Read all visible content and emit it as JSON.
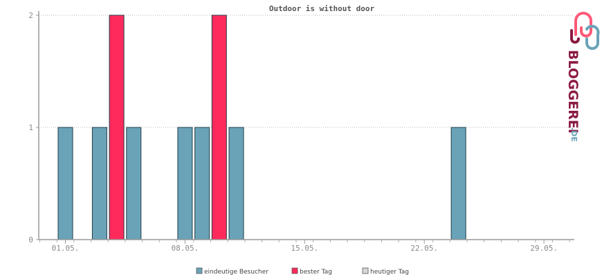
{
  "chart_data": {
    "type": "bar",
    "title": "Outdoor is without door",
    "xlabel": "",
    "ylabel": "",
    "ylim": [
      0,
      2
    ],
    "yticks": [
      0,
      1,
      2
    ],
    "x_range": [
      0,
      31
    ],
    "x_ticks": [
      {
        "day": 1,
        "label": "01.05."
      },
      {
        "day": 8,
        "label": "08.05."
      },
      {
        "day": 15,
        "label": "15.05."
      },
      {
        "day": 22,
        "label": "22.05."
      },
      {
        "day": 29,
        "label": "29.05."
      }
    ],
    "grid": true,
    "legend_position": "bottom",
    "series": [
      {
        "name": "eindeutige Besucher",
        "color": "#6aa3b8",
        "type": "bar"
      },
      {
        "name": "bester Tag",
        "color": "#ff2a5c",
        "type": "bar"
      },
      {
        "name": "heutiger Tag",
        "color": "#d6d6d6",
        "type": "bar"
      }
    ],
    "bars": [
      {
        "day": 1,
        "value": 1,
        "series": "eindeutige Besucher"
      },
      {
        "day": 3,
        "value": 1,
        "series": "eindeutige Besucher"
      },
      {
        "day": 4,
        "value": 2,
        "series": "bester Tag"
      },
      {
        "day": 5,
        "value": 1,
        "series": "eindeutige Besucher"
      },
      {
        "day": 8,
        "value": 1,
        "series": "eindeutige Besucher"
      },
      {
        "day": 9,
        "value": 1,
        "series": "eindeutige Besucher"
      },
      {
        "day": 10,
        "value": 2,
        "series": "bester Tag"
      },
      {
        "day": 11,
        "value": 1,
        "series": "eindeutige Besucher"
      },
      {
        "day": 24,
        "value": 1,
        "series": "eindeutige Besucher"
      }
    ]
  },
  "logo": {
    "text_main": "BLOGGEREI",
    "text_suffix": ".DE",
    "color_pink": "#ff5a78",
    "color_blue": "#6aa3b8",
    "color_dark": "#8b1a43"
  }
}
